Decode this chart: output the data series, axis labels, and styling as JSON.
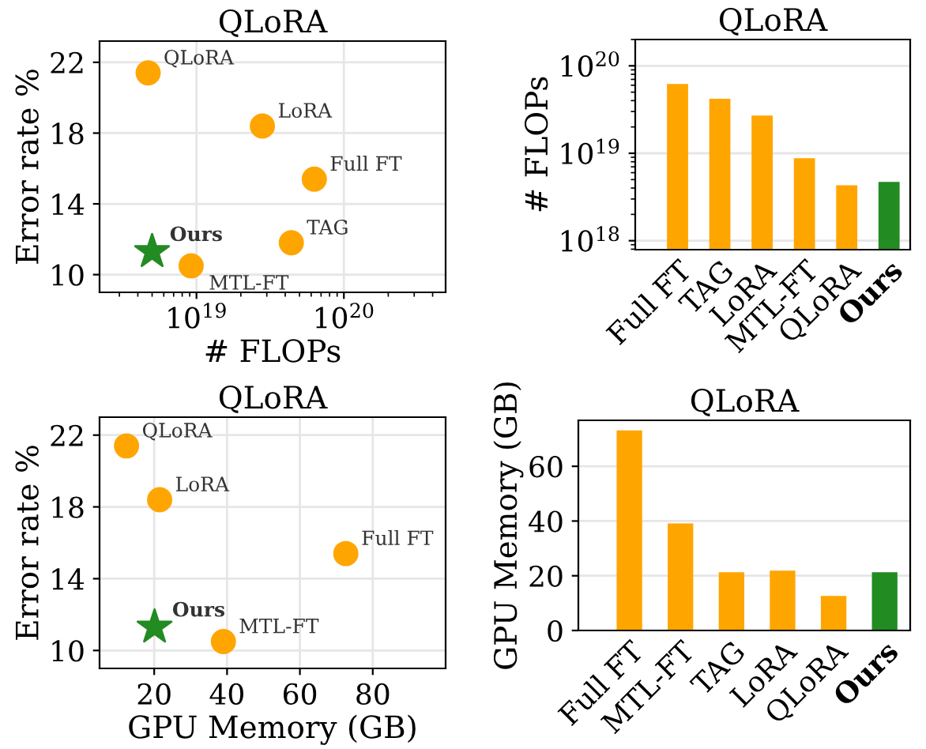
{
  "chart_data": [
    {
      "type": "scatter",
      "title": "QLoRA",
      "xlabel": "# FLOPs",
      "ylabel": "Error rate %",
      "log": "x",
      "xlim": [
        2.2e+18,
        4.9e+20
      ],
      "ylim": [
        9,
        23.2
      ],
      "xticks": [
        {
          "value": 1e+19,
          "label": "10$^{19}$"
        },
        {
          "value": 1e+20,
          "label": "10$^{20}$"
        }
      ],
      "yticks": [
        10,
        14,
        18,
        22
      ],
      "grid": true,
      "legend": false,
      "series": [
        {
          "name": "QLoRA",
          "color": "#ffa500",
          "marker": "circle",
          "x": [
            4.7e+18
          ],
          "values": [
            21.4
          ]
        },
        {
          "name": "LoRA",
          "color": "#ffa500",
          "marker": "circle",
          "x": [
            2.8e+19
          ],
          "values": [
            18.4
          ]
        },
        {
          "name": "Full FT",
          "color": "#ffa500",
          "marker": "circle",
          "x": [
            6.3e+19
          ],
          "values": [
            15.4
          ]
        },
        {
          "name": "TAG",
          "color": "#ffa500",
          "marker": "circle",
          "x": [
            4.4e+19
          ],
          "values": [
            11.8
          ]
        },
        {
          "name": "MTL-FT",
          "color": "#ffa500",
          "marker": "circle",
          "x": [
            9.2e+18
          ],
          "values": [
            10.5
          ]
        },
        {
          "name": "Ours",
          "color": "#228b22",
          "marker": "star",
          "x": [
            5e+18
          ],
          "values": [
            11.3
          ]
        }
      ]
    },
    {
      "type": "bar",
      "title": "QLoRA",
      "ylabel": "# FLOPs",
      "log": "y",
      "ylim": [
        7.9e+17,
        2e+20
      ],
      "yticks": [
        {
          "value": 1e+18,
          "label": "10$^{18}$"
        },
        {
          "value": 1e+19,
          "label": "10$^{19}$"
        },
        {
          "value": 1e+20,
          "label": "10$^{20}$"
        }
      ],
      "grid": "y",
      "categories": [
        "Full FT",
        "TAG",
        "LoRA",
        "MTL-FT",
        "QLoRA",
        "Ours"
      ],
      "values": [
        6.2e+19,
        4.2e+19,
        2.7e+19,
        8.8e+18,
        4.3e+18,
        4.7e+18
      ],
      "colors": [
        "#ffa500",
        "#ffa500",
        "#ffa500",
        "#ffa500",
        "#ffa500",
        "#228b22"
      ]
    },
    {
      "type": "scatter",
      "title": "QLoRA",
      "xlabel": "GPU Memory (GB)",
      "ylabel": "Error rate %",
      "xlim": [
        5,
        100
      ],
      "ylim": [
        9,
        23
      ],
      "xticks": [
        20,
        40,
        60,
        80
      ],
      "yticks": [
        10,
        14,
        18,
        22
      ],
      "grid": true,
      "legend": false,
      "series": [
        {
          "name": "QLoRA",
          "color": "#ffa500",
          "marker": "circle",
          "x": [
            12.4
          ],
          "values": [
            21.4
          ]
        },
        {
          "name": "LoRA",
          "color": "#ffa500",
          "marker": "circle",
          "x": [
            21.5
          ],
          "values": [
            18.4
          ]
        },
        {
          "name": "Full FT",
          "color": "#ffa500",
          "marker": "circle",
          "x": [
            72.6
          ],
          "values": [
            15.4
          ]
        },
        {
          "name": "MTL-FT",
          "color": "#ffa500",
          "marker": "circle",
          "x": [
            39.0
          ],
          "values": [
            10.5
          ]
        },
        {
          "name": "Ours",
          "color": "#228b22",
          "marker": "star",
          "x": [
            20.1
          ],
          "values": [
            11.3
          ]
        }
      ]
    },
    {
      "type": "bar",
      "title": "QLoRA",
      "ylabel": "GPU Memory (GB)",
      "ylim": [
        0,
        76.8
      ],
      "yticks": [
        0,
        20,
        40,
        60
      ],
      "grid": "y",
      "categories": [
        "Full FT",
        "MTL-FT",
        "TAG",
        "LoRA",
        "QLoRA",
        "Ours"
      ],
      "values": [
        73.1,
        39.1,
        21.3,
        21.9,
        12.6,
        21.3
      ],
      "colors": [
        "#ffa500",
        "#ffa500",
        "#ffa500",
        "#ffa500",
        "#ffa500",
        "#228b22"
      ]
    }
  ]
}
